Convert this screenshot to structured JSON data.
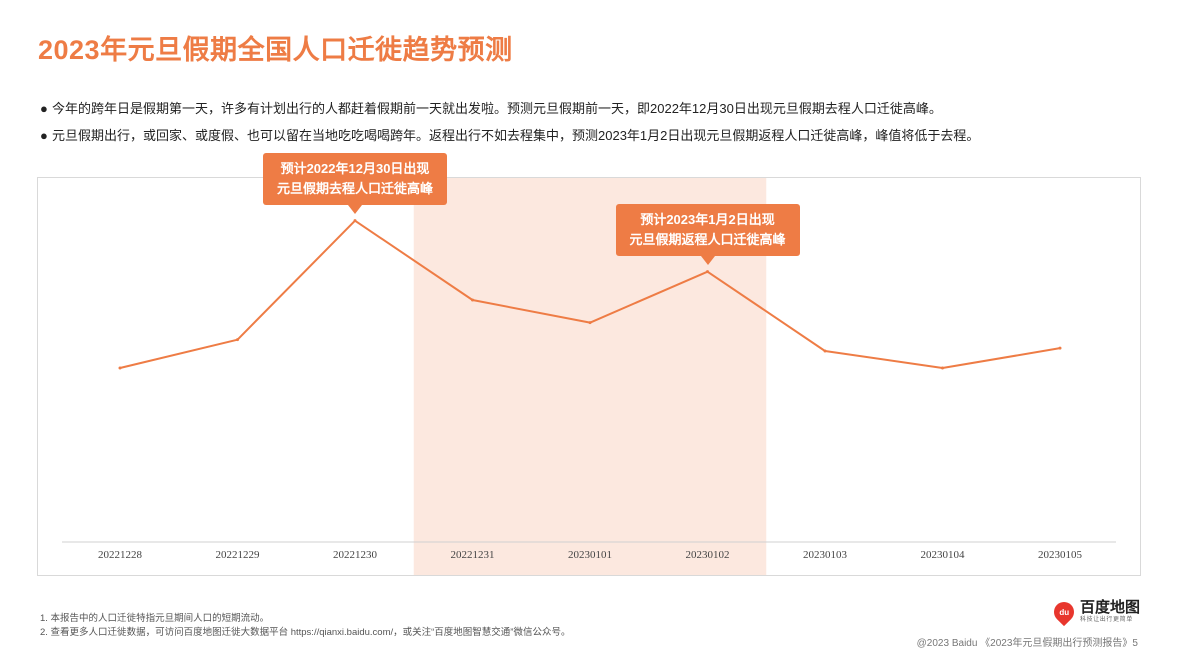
{
  "header": {
    "title": "2023年元旦假期全国人口迁徙趋势预测"
  },
  "bullets": [
    "今年的跨年日是假期第一天，许多有计划出行的人都赶着假期前一天就出发啦。预测元旦假期前一天，即2022年12月30日出现元旦假期去程人口迁徙高峰。",
    "元旦假期出行，或回家、或度假、也可以留在当地吃吃喝喝跨年。返程出行不如去程集中，预测2023年1月2日出现元旦假期返程人口迁徙高峰，峰值将低于去程。"
  ],
  "bullet_marker": "●",
  "chart_data": {
    "type": "line",
    "categories": [
      "20221228",
      "20221229",
      "20221230",
      "20221231",
      "20230101",
      "20230102",
      "20230103",
      "20230104",
      "20230105"
    ],
    "values": [
      30,
      35,
      56,
      42,
      38,
      47,
      33,
      30,
      33.5
    ],
    "ylim": [
      0,
      60
    ],
    "grid": false,
    "line_color": "#ee7c45",
    "highlight_range": [
      "20221231",
      "20230102"
    ],
    "highlight_color": "#fce8df",
    "annotations": [
      {
        "category": "20221230",
        "lines": [
          "预计2022年12月30日出现",
          "元旦假期去程人口迁徙高峰"
        ]
      },
      {
        "category": "20230102",
        "lines": [
          "预计2023年1月2日出现",
          "元旦假期返程人口迁徙高峰"
        ]
      }
    ]
  },
  "footnotes": [
    "1.  本报告中的人口迁徙特指元旦期间人口的短期流动。",
    "2.  查看更多人口迁徙数据，可访问百度地图迁徙大数据平台 https://qianxi.baidu.com/，或关注“百度地图智慧交通”微信公众号。"
  ],
  "logo": {
    "mark": "du",
    "name": "百度地图",
    "slogan": "科技让出行更简单"
  },
  "copyright": "@2023 Baidu 《2023年元旦假期出行预测报告》5",
  "colors": {
    "accent": "#ee7c45",
    "text": "#222222"
  }
}
